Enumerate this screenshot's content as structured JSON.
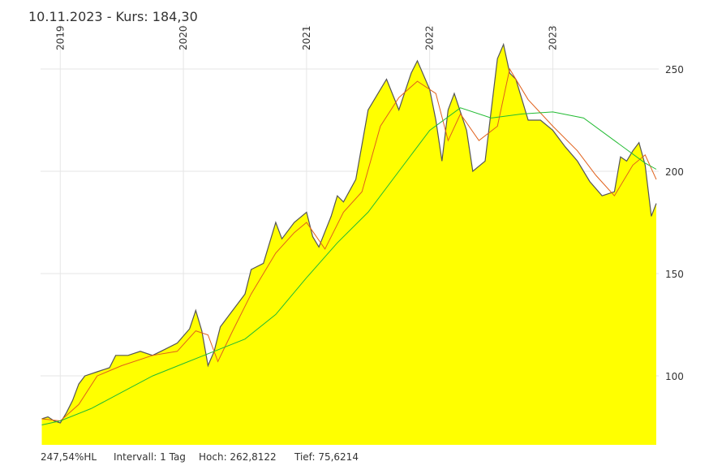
{
  "chart_data": {
    "type": "area",
    "title": "10.11.2023  - Kurs: 184,30",
    "footer": [
      "247,54%HL",
      "Intervall: 1 Tag",
      "Hoch: 262,8122",
      "Tief: 75,6214"
    ],
    "xlim": [
      2018.84,
      2023.86
    ],
    "xticks": [
      2019,
      2020,
      2021,
      2022,
      2023
    ],
    "ylim": [
      66.3,
      271.8
    ],
    "yticks": [
      100,
      150,
      200,
      250
    ],
    "grid": true,
    "series": [
      {
        "color": "#555555",
        "fill": "#ffff00",
        "x": [
          2018.85,
          2018.9,
          2018.95,
          2019.0,
          2019.05,
          2019.1,
          2019.15,
          2019.2,
          2019.3,
          2019.4,
          2019.45,
          2019.55,
          2019.65,
          2019.75,
          2019.85,
          2019.95,
          2020.05,
          2020.1,
          2020.15,
          2020.2,
          2020.25,
          2020.3,
          2020.4,
          2020.5,
          2020.55,
          2020.65,
          2020.75,
          2020.8,
          2020.9,
          2021.0,
          2021.05,
          2021.1,
          2021.2,
          2021.25,
          2021.3,
          2021.4,
          2021.5,
          2021.6,
          2021.65,
          2021.75,
          2021.85,
          2021.9,
          2022.0,
          2022.05,
          2022.1,
          2022.15,
          2022.2,
          2022.3,
          2022.35,
          2022.45,
          2022.55,
          2022.6,
          2022.65,
          2022.7,
          2022.8,
          2022.9,
          2023.0,
          2023.1,
          2023.2,
          2023.3,
          2023.4,
          2023.5,
          2023.55,
          2023.6,
          2023.65,
          2023.7,
          2023.75,
          2023.8,
          2023.84
        ],
        "values": [
          79,
          80,
          78,
          77,
          82,
          88,
          96,
          100,
          102,
          104,
          110,
          110,
          112,
          110,
          113,
          116,
          123,
          132,
          122,
          105,
          112,
          124,
          132,
          140,
          152,
          155,
          175,
          167,
          175,
          180,
          168,
          163,
          178,
          188,
          185,
          196,
          230,
          240,
          245,
          230,
          248,
          254,
          240,
          225,
          205,
          230,
          238,
          220,
          200,
          205,
          255,
          262,
          248,
          245,
          225,
          225,
          220,
          212,
          205,
          195,
          188,
          190,
          207,
          205,
          210,
          214,
          203,
          178,
          184.3
        ]
      },
      {
        "color": "#e0601a",
        "x": [
          2018.85,
          2019.0,
          2019.15,
          2019.3,
          2019.5,
          2019.75,
          2019.95,
          2020.1,
          2020.2,
          2020.28,
          2020.4,
          2020.55,
          2020.75,
          2020.9,
          2021.0,
          2021.15,
          2021.3,
          2021.45,
          2021.6,
          2021.75,
          2021.9,
          2022.05,
          2022.15,
          2022.25,
          2022.4,
          2022.55,
          2022.65,
          2022.8,
          2023.0,
          2023.2,
          2023.35,
          2023.5,
          2023.65,
          2023.75,
          2023.84
        ],
        "values": [
          79,
          78,
          86,
          100,
          105,
          110,
          112,
          122,
          120,
          107,
          122,
          140,
          160,
          170,
          175,
          162,
          180,
          190,
          222,
          236,
          244,
          238,
          215,
          228,
          215,
          222,
          250,
          235,
          222,
          210,
          198,
          188,
          203,
          208,
          196
        ]
      },
      {
        "color": "#22bb33",
        "x": [
          2018.85,
          2019.0,
          2019.25,
          2019.5,
          2019.75,
          2020.0,
          2020.25,
          2020.5,
          2020.75,
          2021.0,
          2021.25,
          2021.5,
          2021.75,
          2022.0,
          2022.25,
          2022.5,
          2022.75,
          2023.0,
          2023.25,
          2023.5,
          2023.75,
          2023.84
        ],
        "values": [
          76,
          78,
          84,
          92,
          100,
          106,
          112,
          118,
          130,
          148,
          165,
          180,
          200,
          220,
          231,
          226,
          228,
          229,
          226,
          215,
          204,
          201
        ]
      }
    ]
  }
}
